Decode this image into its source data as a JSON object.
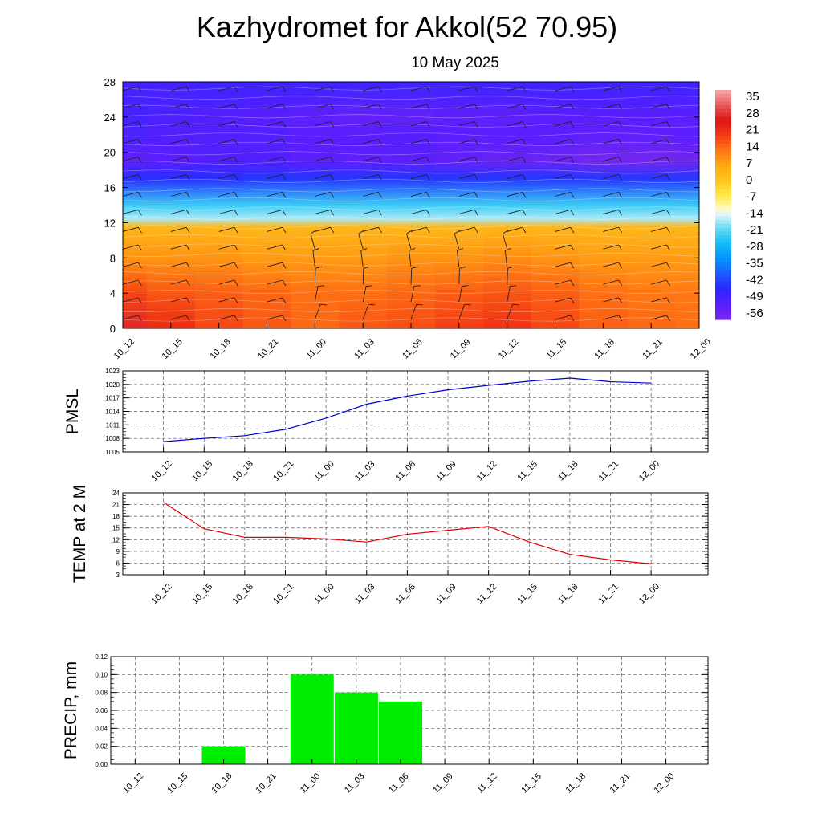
{
  "header": {
    "title": "Kazhydromet for Akkol(52 70.95)",
    "subtitle": "10 May 2025"
  },
  "time_labels": [
    "10_12",
    "10_15",
    "10_18",
    "10_21",
    "11_00",
    "11_03",
    "11_06",
    "11_09",
    "11_12",
    "11_15",
    "11_18",
    "11_21",
    "12_00"
  ],
  "colors": {
    "pmsl_line": "#0000cc",
    "temp_line": "#dd0000",
    "precip_bar": "#00ee00"
  },
  "chart_data": [
    {
      "type": "heatmap",
      "y_ticks": [
        "0",
        "4",
        "8",
        "12",
        "16",
        "20",
        "24",
        "28"
      ],
      "ylim": [
        0,
        28
      ],
      "colorbar_labels": [
        "35",
        "28",
        "21",
        "14",
        "7",
        "0",
        "-7",
        "-14",
        "-21",
        "-28",
        "-35",
        "-42",
        "-49",
        "-56"
      ],
      "colorbar_range": [
        -63,
        42
      ],
      "rows": [
        {
          "y": 0,
          "values": [
            30,
            24,
            20,
            18,
            16,
            18,
            19,
            21,
            23,
            20,
            17,
            16,
            15
          ]
        },
        {
          "y": 4,
          "values": [
            20,
            18,
            17,
            16,
            15,
            15,
            16,
            17,
            18,
            17,
            15,
            14,
            14
          ]
        },
        {
          "y": 8,
          "values": [
            10,
            10,
            10,
            9,
            9,
            9,
            10,
            10,
            11,
            10,
            9,
            9,
            9
          ]
        },
        {
          "y": 11.5,
          "values": [
            4,
            4,
            4,
            4,
            4,
            4,
            4,
            4,
            4,
            4,
            4,
            4,
            4
          ]
        },
        {
          "y": 12.5,
          "values": [
            -18,
            -18,
            -18,
            -18,
            -18,
            -18,
            -18,
            -18,
            -18,
            -18,
            -18,
            -18,
            -18
          ]
        },
        {
          "y": 14,
          "values": [
            -25,
            -25,
            -25,
            -25,
            -25,
            -25,
            -25,
            -25,
            -25,
            -25,
            -25,
            -25,
            -25
          ]
        },
        {
          "y": 17,
          "values": [
            -48,
            -48,
            -48,
            -47,
            -47,
            -47,
            -47,
            -47,
            -47,
            -47,
            -47,
            -47,
            -47
          ]
        },
        {
          "y": 19,
          "values": [
            -57,
            -56,
            -55,
            -55,
            -56,
            -57,
            -57,
            -58,
            -59,
            -60,
            -62,
            -62,
            -61
          ]
        },
        {
          "y": 22,
          "values": [
            -54,
            -55,
            -55,
            -55,
            -56,
            -56,
            -55,
            -56,
            -56,
            -56,
            -57,
            -57,
            -56
          ]
        },
        {
          "y": 24,
          "values": [
            -53,
            -54,
            -55,
            -56,
            -57,
            -58,
            -58,
            -57,
            -57,
            -56,
            -56,
            -56,
            -56
          ]
        },
        {
          "y": 28,
          "values": [
            -53,
            -53,
            -52,
            -52,
            -52,
            -52,
            -52,
            -52,
            -52,
            -52,
            -52,
            -52,
            -52
          ]
        }
      ]
    },
    {
      "type": "line",
      "ylabel": "PMSL",
      "y_ticks": [
        "1005",
        "1008",
        "1011",
        "1014",
        "1017",
        "1020",
        "1023"
      ],
      "ylim": [
        1005,
        1023
      ],
      "x": [
        "10_12",
        "10_15",
        "10_18",
        "10_21",
        "11_00",
        "11_03",
        "11_06",
        "11_09",
        "11_12",
        "11_15",
        "11_18",
        "11_21",
        "12_00"
      ],
      "values": [
        1007.3,
        1008.0,
        1008.6,
        1010.0,
        1012.5,
        1015.6,
        1017.4,
        1018.8,
        1019.8,
        1020.7,
        1021.4,
        1020.6,
        1020.3
      ],
      "grid": true
    },
    {
      "type": "line",
      "ylabel": "TEMP at 2 M",
      "y_ticks": [
        "3",
        "6",
        "9",
        "12",
        "15",
        "18",
        "21",
        "24"
      ],
      "ylim": [
        3,
        24
      ],
      "x": [
        "10_12",
        "10_15",
        "10_18",
        "10_21",
        "11_00",
        "11_03",
        "11_06",
        "11_09",
        "11_12",
        "11_15",
        "11_18",
        "11_21",
        "12_00"
      ],
      "values": [
        21.6,
        14.8,
        12.6,
        12.6,
        12.2,
        11.4,
        13.4,
        14.4,
        15.4,
        11.4,
        8.2,
        6.8,
        5.8
      ],
      "grid": true
    },
    {
      "type": "bar",
      "ylabel": "PRECIP, mm",
      "y_ticks": [
        "0.00",
        "0.02",
        "0.04",
        "0.06",
        "0.08",
        "0.10",
        "0.12"
      ],
      "ylim": [
        0,
        0.12
      ],
      "categories": [
        "10_12",
        "10_15",
        "10_18",
        "10_21",
        "11_00",
        "11_03",
        "11_06",
        "11_09",
        "11_12",
        "11_15",
        "11_18",
        "11_21",
        "12_00"
      ],
      "values": [
        0,
        0,
        0.02,
        0,
        0.1,
        0.08,
        0.07,
        0,
        0,
        0,
        0,
        0,
        0
      ],
      "grid": true
    }
  ]
}
